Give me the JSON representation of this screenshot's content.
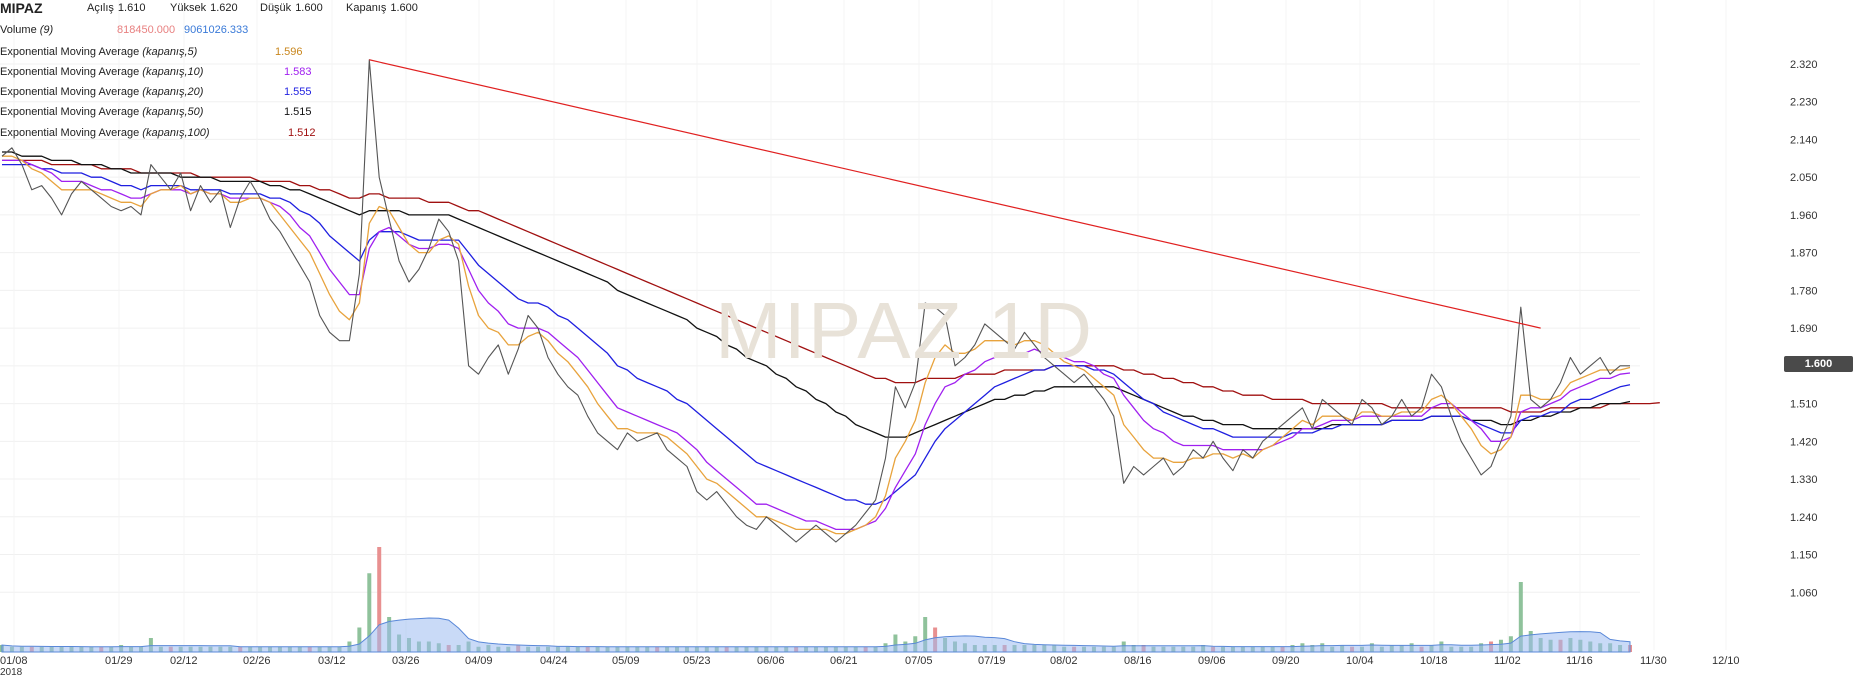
{
  "symbol": "MIPAZ",
  "watermark": "MIPAZ 1D",
  "ohlc": {
    "open_label": "Açılış",
    "open": "1.610",
    "high_label": "Yüksek",
    "high": "1.620",
    "low_label": "Düşük",
    "low": "1.600",
    "close_label": "Kapanış",
    "close": "1.600"
  },
  "volume": {
    "label": "Volume",
    "period": "(9)",
    "value1": "818450.000",
    "value2": "9061026.333"
  },
  "ema": [
    {
      "label": "Exponential Moving Average",
      "params": "(kapanış,5)",
      "value": "1.596",
      "color": "#e8a33d"
    },
    {
      "label": "Exponential Moving Average",
      "params": "(kapanış,10)",
      "value": "1.583",
      "color": "#a020f0"
    },
    {
      "label": "Exponential Moving Average",
      "params": "(kapanış,20)",
      "value": "1.555",
      "color": "#1f1fe0"
    },
    {
      "label": "Exponential Moving Average",
      "params": "(kapanış,50)",
      "value": "1.515",
      "color": "#111111"
    },
    {
      "label": "Exponential Moving Average",
      "params": "(kapanış,100)",
      "value": "1.512",
      "color": "#a01010"
    }
  ],
  "price_tag": "1.600",
  "chart_data": {
    "type": "line",
    "x_labels": [
      "01/08",
      "01/29",
      "02/12",
      "02/26",
      "03/12",
      "03/26",
      "04/09",
      "04/24",
      "05/09",
      "05/23",
      "06/06",
      "06/21",
      "07/05",
      "07/19",
      "08/02",
      "08/16",
      "09/06",
      "09/20",
      "10/04",
      "10/18",
      "11/02",
      "11/16",
      "11/30",
      "12/10"
    ],
    "year_label": "2018",
    "y_ticks": [
      "2.320",
      "2.230",
      "2.140",
      "2.050",
      "1.960",
      "1.870",
      "1.780",
      "1.690",
      "1.600",
      "1.510",
      "1.420",
      "1.330",
      "1.240",
      "1.150",
      "1.060"
    ],
    "ylim": [
      0.97,
      2.37
    ],
    "series": [
      {
        "color": "#555555",
        "values": [
          2.1,
          2.12,
          2.08,
          2.02,
          2.03,
          2.0,
          1.96,
          2.01,
          2.04,
          2.02,
          2.0,
          1.98,
          1.97,
          1.98,
          1.96,
          2.08,
          2.05,
          2.02,
          2.06,
          1.97,
          2.03,
          1.99,
          2.02,
          1.93,
          2.0,
          2.04,
          2.0,
          1.95,
          1.92,
          1.88,
          1.84,
          1.8,
          1.72,
          1.68,
          1.66,
          1.66,
          1.82,
          2.33,
          2.05,
          1.95,
          1.85,
          1.8,
          1.83,
          1.88,
          1.95,
          1.92,
          1.85,
          1.6,
          1.58,
          1.62,
          1.65,
          1.58,
          1.64,
          1.72,
          1.69,
          1.62,
          1.58,
          1.55,
          1.53,
          1.48,
          1.44,
          1.42,
          1.4,
          1.44,
          1.42,
          1.43,
          1.44,
          1.4,
          1.38,
          1.36,
          1.3,
          1.28,
          1.3,
          1.27,
          1.24,
          1.22,
          1.21,
          1.24,
          1.22,
          1.2,
          1.18,
          1.2,
          1.22,
          1.2,
          1.18,
          1.2,
          1.22,
          1.25,
          1.28,
          1.38,
          1.55,
          1.5,
          1.56,
          1.75,
          1.74,
          1.72,
          1.6,
          1.62,
          1.65,
          1.7,
          1.68,
          1.66,
          1.64,
          1.68,
          1.65,
          1.62,
          1.6,
          1.58,
          1.56,
          1.58,
          1.55,
          1.52,
          1.48,
          1.32,
          1.36,
          1.34,
          1.36,
          1.38,
          1.34,
          1.36,
          1.4,
          1.38,
          1.42,
          1.38,
          1.35,
          1.4,
          1.38,
          1.42,
          1.44,
          1.46,
          1.48,
          1.5,
          1.45,
          1.52,
          1.5,
          1.48,
          1.46,
          1.52,
          1.5,
          1.46,
          1.48,
          1.52,
          1.48,
          1.5,
          1.58,
          1.55,
          1.48,
          1.42,
          1.38,
          1.34,
          1.36,
          1.42,
          1.48,
          1.74,
          1.52,
          1.5,
          1.52,
          1.56,
          1.62,
          1.58,
          1.6,
          1.62,
          1.58,
          1.6,
          1.6
        ]
      },
      {
        "color": "#e8a33d",
        "values": [
          2.1,
          2.1,
          2.09,
          2.07,
          2.06,
          2.04,
          2.02,
          2.02,
          2.02,
          2.02,
          2.01,
          2.0,
          1.99,
          1.99,
          1.98,
          2.01,
          2.02,
          2.02,
          2.03,
          2.01,
          2.02,
          2.01,
          2.01,
          1.99,
          1.99,
          2.0,
          2.0,
          1.99,
          1.96,
          1.93,
          1.9,
          1.87,
          1.82,
          1.77,
          1.73,
          1.71,
          1.75,
          1.94,
          1.98,
          1.97,
          1.93,
          1.89,
          1.87,
          1.87,
          1.9,
          1.91,
          1.89,
          1.79,
          1.72,
          1.69,
          1.68,
          1.65,
          1.65,
          1.67,
          1.68,
          1.66,
          1.63,
          1.61,
          1.58,
          1.55,
          1.51,
          1.48,
          1.45,
          1.45,
          1.44,
          1.44,
          1.44,
          1.43,
          1.41,
          1.39,
          1.36,
          1.33,
          1.32,
          1.3,
          1.28,
          1.26,
          1.24,
          1.24,
          1.23,
          1.22,
          1.21,
          1.21,
          1.21,
          1.21,
          1.2,
          1.2,
          1.21,
          1.22,
          1.24,
          1.29,
          1.38,
          1.42,
          1.47,
          1.56,
          1.62,
          1.65,
          1.63,
          1.63,
          1.64,
          1.66,
          1.66,
          1.66,
          1.65,
          1.66,
          1.66,
          1.65,
          1.63,
          1.61,
          1.6,
          1.59,
          1.57,
          1.55,
          1.53,
          1.46,
          1.43,
          1.4,
          1.38,
          1.38,
          1.37,
          1.37,
          1.38,
          1.38,
          1.39,
          1.39,
          1.38,
          1.39,
          1.38,
          1.4,
          1.41,
          1.43,
          1.45,
          1.47,
          1.46,
          1.48,
          1.48,
          1.48,
          1.47,
          1.49,
          1.49,
          1.48,
          1.48,
          1.49,
          1.49,
          1.49,
          1.52,
          1.53,
          1.51,
          1.48,
          1.45,
          1.41,
          1.39,
          1.4,
          1.43,
          1.53,
          1.53,
          1.52,
          1.52,
          1.53,
          1.56,
          1.57,
          1.58,
          1.59,
          1.59,
          1.59,
          1.596
        ]
      },
      {
        "color": "#a020f0",
        "values": [
          2.09,
          2.09,
          2.09,
          2.08,
          2.07,
          2.06,
          2.04,
          2.04,
          2.04,
          2.03,
          2.02,
          2.02,
          2.01,
          2.0,
          2.0,
          2.01,
          2.02,
          2.02,
          2.02,
          2.01,
          2.02,
          2.01,
          2.01,
          2.0,
          2.0,
          2.0,
          2.0,
          1.99,
          1.98,
          1.96,
          1.93,
          1.91,
          1.87,
          1.83,
          1.8,
          1.77,
          1.77,
          1.88,
          1.92,
          1.93,
          1.91,
          1.89,
          1.88,
          1.88,
          1.89,
          1.89,
          1.88,
          1.83,
          1.78,
          1.75,
          1.73,
          1.7,
          1.69,
          1.69,
          1.69,
          1.68,
          1.66,
          1.64,
          1.62,
          1.59,
          1.56,
          1.53,
          1.5,
          1.49,
          1.48,
          1.47,
          1.46,
          1.45,
          1.44,
          1.42,
          1.4,
          1.37,
          1.35,
          1.33,
          1.31,
          1.29,
          1.27,
          1.27,
          1.26,
          1.25,
          1.24,
          1.23,
          1.23,
          1.22,
          1.21,
          1.21,
          1.21,
          1.22,
          1.23,
          1.26,
          1.31,
          1.35,
          1.39,
          1.46,
          1.51,
          1.55,
          1.56,
          1.58,
          1.59,
          1.61,
          1.62,
          1.63,
          1.63,
          1.63,
          1.64,
          1.63,
          1.63,
          1.62,
          1.61,
          1.61,
          1.6,
          1.58,
          1.57,
          1.53,
          1.5,
          1.47,
          1.45,
          1.44,
          1.42,
          1.41,
          1.41,
          1.41,
          1.41,
          1.4,
          1.4,
          1.4,
          1.4,
          1.4,
          1.41,
          1.42,
          1.43,
          1.45,
          1.45,
          1.46,
          1.47,
          1.47,
          1.47,
          1.48,
          1.48,
          1.48,
          1.48,
          1.48,
          1.48,
          1.48,
          1.5,
          1.51,
          1.51,
          1.49,
          1.47,
          1.45,
          1.42,
          1.42,
          1.43,
          1.49,
          1.5,
          1.5,
          1.51,
          1.52,
          1.54,
          1.55,
          1.56,
          1.57,
          1.57,
          1.58,
          1.583
        ]
      },
      {
        "color": "#1f1fe0",
        "values": [
          2.08,
          2.08,
          2.08,
          2.08,
          2.07,
          2.07,
          2.06,
          2.06,
          2.06,
          2.05,
          2.05,
          2.04,
          2.03,
          2.03,
          2.02,
          2.03,
          2.03,
          2.03,
          2.03,
          2.02,
          2.02,
          2.02,
          2.02,
          2.01,
          2.01,
          2.01,
          2.01,
          2.0,
          2.0,
          1.99,
          1.97,
          1.96,
          1.94,
          1.91,
          1.89,
          1.87,
          1.85,
          1.9,
          1.92,
          1.92,
          1.92,
          1.91,
          1.9,
          1.9,
          1.9,
          1.9,
          1.9,
          1.87,
          1.84,
          1.82,
          1.8,
          1.78,
          1.76,
          1.75,
          1.75,
          1.74,
          1.72,
          1.71,
          1.69,
          1.67,
          1.65,
          1.63,
          1.6,
          1.59,
          1.57,
          1.56,
          1.55,
          1.54,
          1.52,
          1.51,
          1.49,
          1.47,
          1.45,
          1.43,
          1.41,
          1.39,
          1.37,
          1.36,
          1.35,
          1.34,
          1.33,
          1.32,
          1.31,
          1.3,
          1.29,
          1.28,
          1.28,
          1.27,
          1.27,
          1.28,
          1.3,
          1.32,
          1.34,
          1.38,
          1.42,
          1.45,
          1.47,
          1.49,
          1.51,
          1.53,
          1.55,
          1.56,
          1.57,
          1.58,
          1.59,
          1.59,
          1.6,
          1.6,
          1.6,
          1.6,
          1.59,
          1.59,
          1.58,
          1.56,
          1.54,
          1.52,
          1.51,
          1.49,
          1.48,
          1.47,
          1.46,
          1.45,
          1.45,
          1.44,
          1.43,
          1.43,
          1.43,
          1.43,
          1.43,
          1.43,
          1.44,
          1.44,
          1.44,
          1.45,
          1.45,
          1.46,
          1.46,
          1.46,
          1.46,
          1.46,
          1.47,
          1.47,
          1.47,
          1.47,
          1.48,
          1.48,
          1.48,
          1.48,
          1.47,
          1.46,
          1.45,
          1.44,
          1.44,
          1.47,
          1.48,
          1.48,
          1.49,
          1.49,
          1.51,
          1.52,
          1.52,
          1.53,
          1.54,
          1.55,
          1.555
        ]
      },
      {
        "color": "#111111",
        "values": [
          2.11,
          2.11,
          2.1,
          2.1,
          2.1,
          2.09,
          2.09,
          2.09,
          2.08,
          2.08,
          2.08,
          2.07,
          2.07,
          2.06,
          2.06,
          2.06,
          2.06,
          2.06,
          2.05,
          2.05,
          2.05,
          2.05,
          2.04,
          2.04,
          2.04,
          2.04,
          2.04,
          2.03,
          2.03,
          2.02,
          2.02,
          2.01,
          2.0,
          1.99,
          1.98,
          1.97,
          1.96,
          1.97,
          1.97,
          1.97,
          1.97,
          1.96,
          1.96,
          1.96,
          1.96,
          1.96,
          1.95,
          1.94,
          1.93,
          1.92,
          1.91,
          1.9,
          1.89,
          1.88,
          1.87,
          1.86,
          1.85,
          1.84,
          1.83,
          1.82,
          1.81,
          1.8,
          1.78,
          1.77,
          1.76,
          1.75,
          1.74,
          1.73,
          1.72,
          1.71,
          1.69,
          1.68,
          1.67,
          1.65,
          1.64,
          1.62,
          1.61,
          1.6,
          1.58,
          1.57,
          1.55,
          1.54,
          1.52,
          1.51,
          1.49,
          1.48,
          1.46,
          1.45,
          1.44,
          1.43,
          1.43,
          1.43,
          1.44,
          1.45,
          1.46,
          1.47,
          1.48,
          1.49,
          1.5,
          1.51,
          1.52,
          1.52,
          1.53,
          1.53,
          1.54,
          1.54,
          1.55,
          1.55,
          1.55,
          1.55,
          1.55,
          1.55,
          1.55,
          1.54,
          1.53,
          1.52,
          1.51,
          1.5,
          1.49,
          1.48,
          1.48,
          1.47,
          1.47,
          1.46,
          1.46,
          1.46,
          1.45,
          1.45,
          1.45,
          1.45,
          1.45,
          1.45,
          1.45,
          1.45,
          1.46,
          1.46,
          1.46,
          1.46,
          1.46,
          1.46,
          1.47,
          1.47,
          1.47,
          1.47,
          1.48,
          1.48,
          1.48,
          1.48,
          1.47,
          1.47,
          1.47,
          1.46,
          1.46,
          1.47,
          1.47,
          1.48,
          1.48,
          1.49,
          1.49,
          1.5,
          1.5,
          1.51,
          1.51,
          1.51,
          1.515
        ]
      },
      {
        "color": "#a01010",
        "values": [
          2.09,
          2.09,
          2.09,
          2.09,
          2.09,
          2.08,
          2.08,
          2.08,
          2.08,
          2.08,
          2.07,
          2.07,
          2.07,
          2.07,
          2.06,
          2.06,
          2.06,
          2.06,
          2.06,
          2.06,
          2.05,
          2.05,
          2.05,
          2.05,
          2.05,
          2.05,
          2.04,
          2.04,
          2.04,
          2.04,
          2.03,
          2.03,
          2.02,
          2.02,
          2.01,
          2.0,
          2.0,
          2.01,
          2.01,
          2.0,
          2.0,
          2.0,
          2.0,
          1.99,
          1.99,
          1.99,
          1.98,
          1.97,
          1.97,
          1.96,
          1.95,
          1.94,
          1.93,
          1.92,
          1.91,
          1.9,
          1.89,
          1.88,
          1.87,
          1.86,
          1.85,
          1.84,
          1.83,
          1.82,
          1.81,
          1.8,
          1.79,
          1.78,
          1.77,
          1.76,
          1.75,
          1.74,
          1.73,
          1.72,
          1.71,
          1.7,
          1.69,
          1.68,
          1.67,
          1.66,
          1.65,
          1.64,
          1.63,
          1.62,
          1.61,
          1.6,
          1.59,
          1.58,
          1.57,
          1.57,
          1.56,
          1.56,
          1.56,
          1.57,
          1.57,
          1.57,
          1.57,
          1.58,
          1.58,
          1.58,
          1.58,
          1.59,
          1.59,
          1.59,
          1.59,
          1.59,
          1.6,
          1.6,
          1.6,
          1.6,
          1.6,
          1.6,
          1.6,
          1.59,
          1.59,
          1.58,
          1.58,
          1.57,
          1.57,
          1.56,
          1.56,
          1.55,
          1.55,
          1.54,
          1.54,
          1.53,
          1.53,
          1.53,
          1.52,
          1.52,
          1.52,
          1.52,
          1.51,
          1.51,
          1.51,
          1.51,
          1.51,
          1.51,
          1.51,
          1.51,
          1.5,
          1.5,
          1.5,
          1.5,
          1.5,
          1.5,
          1.5,
          1.5,
          1.5,
          1.5,
          1.5,
          1.5,
          1.49,
          1.49,
          1.49,
          1.49,
          1.5,
          1.5,
          1.5,
          1.5,
          1.5,
          1.5,
          1.51,
          1.51,
          1.51,
          1.51,
          1.51,
          1.512
        ]
      }
    ],
    "trendline": {
      "color": "#e02020",
      "from": [
        37,
        2.33
      ],
      "to": [
        155,
        1.69
      ]
    },
    "volume_bars": [
      4,
      3,
      3,
      3,
      3,
      3,
      3,
      3,
      3,
      3,
      3,
      3,
      4,
      3,
      3,
      8,
      3,
      3,
      3,
      3,
      3,
      3,
      3,
      3,
      3,
      3,
      3,
      3,
      3,
      3,
      3,
      3,
      3,
      3,
      3,
      6,
      14,
      45,
      60,
      20,
      10,
      8,
      6,
      6,
      5,
      4,
      4,
      6,
      3,
      4,
      3,
      3,
      4,
      3,
      3,
      3,
      3,
      3,
      3,
      3,
      3,
      3,
      3,
      3,
      3,
      3,
      3,
      3,
      3,
      3,
      3,
      3,
      3,
      3,
      3,
      3,
      3,
      3,
      3,
      3,
      3,
      3,
      3,
      3,
      3,
      3,
      3,
      3,
      3,
      5,
      10,
      6,
      9,
      20,
      14,
      8,
      6,
      5,
      4,
      4,
      4,
      4,
      4,
      4,
      4,
      4,
      4,
      3,
      3,
      3,
      3,
      3,
      3,
      6,
      4,
      4,
      3,
      3,
      3,
      3,
      3,
      4,
      3,
      3,
      3,
      3,
      3,
      3,
      3,
      3,
      4,
      5,
      4,
      5,
      3,
      4,
      3,
      3,
      5,
      3,
      4,
      4,
      5,
      3,
      4,
      6,
      3,
      3,
      3,
      5,
      6,
      7,
      9,
      40,
      12,
      8,
      7,
      7,
      8,
      7,
      6,
      5,
      5,
      4,
      4
    ]
  }
}
